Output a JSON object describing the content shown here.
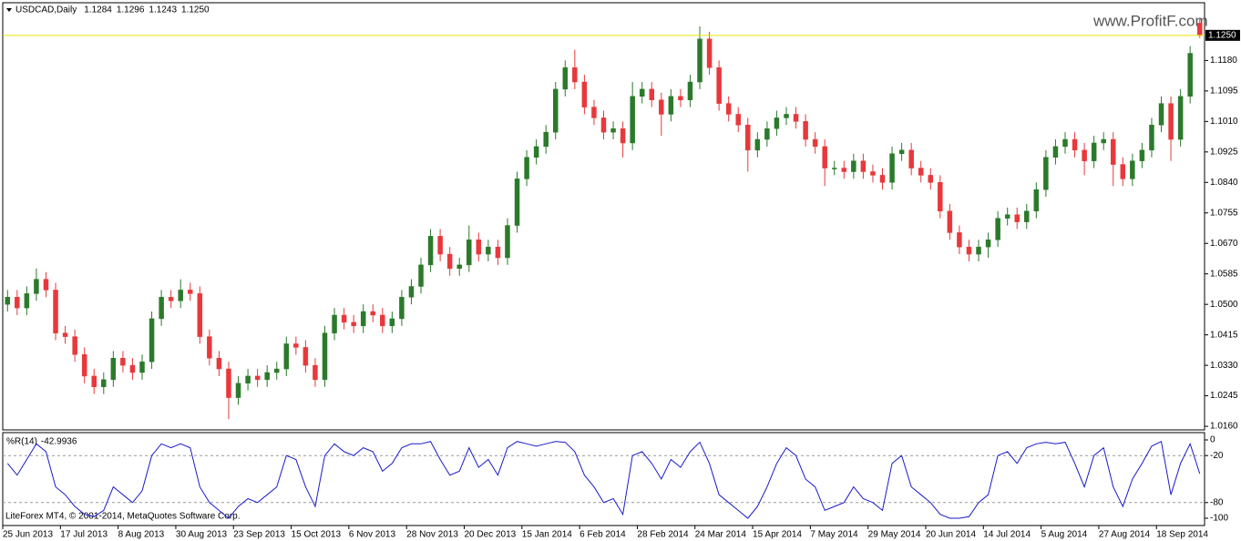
{
  "chart_data": [
    {
      "type": "candlestick",
      "title": "USDCAD,Daily",
      "categories": [
        "25 Jun 2013",
        null,
        null,
        null,
        null,
        null,
        "17 Jul 2013",
        null,
        null,
        null,
        null,
        null,
        "8 Aug 2013",
        null,
        null,
        null,
        null,
        null,
        "30 Aug 2013",
        null,
        null,
        null,
        null,
        null,
        "23 Sep 2013",
        null,
        null,
        null,
        null,
        null,
        "15 Oct 2013",
        null,
        null,
        null,
        null,
        null,
        "6 Nov 2013",
        null,
        null,
        null,
        null,
        null,
        "28 Nov 2013",
        null,
        null,
        null,
        null,
        null,
        "20 Dec 2013",
        null,
        null,
        null,
        null,
        null,
        "15 Jan 2014",
        null,
        null,
        null,
        null,
        null,
        "6 Feb 2014",
        null,
        null,
        null,
        null,
        null,
        "28 Feb 2014",
        null,
        null,
        null,
        null,
        null,
        "24 Mar 2014",
        null,
        null,
        null,
        null,
        null,
        "15 Apr 2014",
        null,
        null,
        null,
        null,
        null,
        "7 May 2014",
        null,
        null,
        null,
        null,
        null,
        "29 May 2014",
        null,
        null,
        null,
        null,
        null,
        "20 Jun 2014",
        null,
        null,
        null,
        null,
        null,
        "14 Jul 2014",
        null,
        null,
        null,
        null,
        null,
        "5 Aug 2014",
        null,
        null,
        null,
        null,
        null,
        "27 Aug 2014",
        null,
        null,
        null,
        null,
        null,
        "18 Sep 2014",
        null,
        null,
        null,
        null
      ],
      "open": [
        1.05,
        1.052,
        1.049,
        1.053,
        1.057,
        1.054,
        1.042,
        1.041,
        1.036,
        1.03,
        1.027,
        1.029,
        1.035,
        1.033,
        1.031,
        1.034,
        1.046,
        1.052,
        1.051,
        1.054,
        1.053,
        1.041,
        1.035,
        1.032,
        1.024,
        1.028,
        1.03,
        1.029,
        1.031,
        1.032,
        1.039,
        1.038,
        1.033,
        1.029,
        1.042,
        1.047,
        1.045,
        1.044,
        1.048,
        1.047,
        1.044,
        1.046,
        1.052,
        1.055,
        1.061,
        1.069,
        1.064,
        1.06,
        1.061,
        1.068,
        1.064,
        1.066,
        1.063,
        1.072,
        1.085,
        1.091,
        1.094,
        1.098,
        1.11,
        1.116,
        1.112,
        1.105,
        1.102,
        1.098,
        1.099,
        1.095,
        1.108,
        1.11,
        1.107,
        1.103,
        1.108,
        1.107,
        1.112,
        1.124,
        1.116,
        1.106,
        1.103,
        1.1,
        1.093,
        1.096,
        1.099,
        1.102,
        1.103,
        1.101,
        1.096,
        1.094,
        1.088,
        1.088,
        1.087,
        1.09,
        1.087,
        1.086,
        1.084,
        1.092,
        1.093,
        1.088,
        1.086,
        1.084,
        1.076,
        1.07,
        1.066,
        1.064,
        1.066,
        1.068,
        1.074,
        1.075,
        1.073,
        1.076,
        1.082,
        1.091,
        1.094,
        1.096,
        1.093,
        1.09,
        1.095,
        1.096,
        1.089,
        1.085,
        1.09,
        1.093,
        1.1,
        1.106,
        1.096,
        1.108,
        1.1284
      ],
      "high": [
        1.054,
        1.054,
        1.055,
        1.06,
        1.059,
        1.056,
        1.044,
        1.043,
        1.038,
        1.032,
        1.031,
        1.037,
        1.037,
        1.035,
        1.036,
        1.048,
        1.054,
        1.054,
        1.057,
        1.056,
        1.055,
        1.043,
        1.037,
        1.034,
        1.03,
        1.032,
        1.032,
        1.033,
        1.034,
        1.041,
        1.041,
        1.04,
        1.035,
        1.044,
        1.049,
        1.049,
        1.047,
        1.05,
        1.05,
        1.049,
        1.048,
        1.054,
        1.057,
        1.063,
        1.071,
        1.071,
        1.066,
        1.063,
        1.072,
        1.07,
        1.068,
        1.068,
        1.074,
        1.087,
        1.093,
        1.096,
        1.1,
        1.112,
        1.118,
        1.121,
        1.114,
        1.107,
        1.104,
        1.101,
        1.101,
        1.112,
        1.112,
        1.112,
        1.109,
        1.11,
        1.11,
        1.114,
        1.1275,
        1.126,
        1.118,
        1.108,
        1.105,
        1.102,
        1.098,
        1.101,
        1.104,
        1.105,
        1.105,
        1.103,
        1.098,
        1.096,
        1.09,
        1.09,
        1.092,
        1.092,
        1.089,
        1.088,
        1.094,
        1.095,
        1.095,
        1.09,
        1.088,
        1.086,
        1.078,
        1.072,
        1.068,
        1.068,
        1.07,
        1.076,
        1.077,
        1.077,
        1.078,
        1.084,
        1.093,
        1.096,
        1.098,
        1.098,
        1.095,
        1.097,
        1.098,
        1.098,
        1.091,
        1.092,
        1.095,
        1.102,
        1.108,
        1.108,
        1.11,
        1.122,
        1.1296
      ],
      "low": [
        1.048,
        1.047,
        1.047,
        1.051,
        1.052,
        1.04,
        1.039,
        1.034,
        1.028,
        1.025,
        1.025,
        1.027,
        1.031,
        1.029,
        1.029,
        1.032,
        1.044,
        1.049,
        1.049,
        1.051,
        1.039,
        1.033,
        1.03,
        1.018,
        1.022,
        1.026,
        1.027,
        1.027,
        1.029,
        1.03,
        1.036,
        1.031,
        1.027,
        1.027,
        1.04,
        1.043,
        1.042,
        1.042,
        1.045,
        1.042,
        1.042,
        1.044,
        1.05,
        1.053,
        1.059,
        1.062,
        1.058,
        1.058,
        1.059,
        1.062,
        1.062,
        1.061,
        1.061,
        1.07,
        1.083,
        1.089,
        1.092,
        1.096,
        1.108,
        1.11,
        1.103,
        1.1,
        1.096,
        1.096,
        1.091,
        1.093,
        1.106,
        1.105,
        1.097,
        1.101,
        1.105,
        1.105,
        1.11,
        1.114,
        1.104,
        1.101,
        1.098,
        1.087,
        1.091,
        1.094,
        1.097,
        1.1,
        1.099,
        1.094,
        1.092,
        1.083,
        1.086,
        1.085,
        1.085,
        1.085,
        1.084,
        1.082,
        1.082,
        1.09,
        1.086,
        1.084,
        1.082,
        1.074,
        1.068,
        1.064,
        1.062,
        1.062,
        1.063,
        1.066,
        1.072,
        1.071,
        1.071,
        1.074,
        1.08,
        1.089,
        1.092,
        1.091,
        1.086,
        1.088,
        1.093,
        1.083,
        1.083,
        1.083,
        1.088,
        1.091,
        1.098,
        1.09,
        1.094,
        1.106,
        1.1243
      ],
      "close": [
        1.052,
        1.049,
        1.053,
        1.057,
        1.054,
        1.042,
        1.041,
        1.036,
        1.03,
        1.027,
        1.029,
        1.035,
        1.033,
        1.031,
        1.034,
        1.046,
        1.052,
        1.051,
        1.054,
        1.053,
        1.041,
        1.035,
        1.032,
        1.024,
        1.028,
        1.03,
        1.029,
        1.031,
        1.032,
        1.039,
        1.038,
        1.033,
        1.029,
        1.042,
        1.047,
        1.045,
        1.044,
        1.048,
        1.047,
        1.044,
        1.046,
        1.052,
        1.055,
        1.061,
        1.069,
        1.064,
        1.06,
        1.061,
        1.068,
        1.064,
        1.066,
        1.063,
        1.072,
        1.085,
        1.091,
        1.094,
        1.098,
        1.11,
        1.116,
        1.112,
        1.105,
        1.102,
        1.098,
        1.099,
        1.095,
        1.108,
        1.11,
        1.107,
        1.103,
        1.108,
        1.107,
        1.112,
        1.124,
        1.116,
        1.106,
        1.103,
        1.1,
        1.093,
        1.096,
        1.099,
        1.102,
        1.103,
        1.101,
        1.096,
        1.094,
        1.088,
        1.088,
        1.087,
        1.09,
        1.087,
        1.086,
        1.084,
        1.092,
        1.093,
        1.088,
        1.086,
        1.084,
        1.076,
        1.07,
        1.066,
        1.064,
        1.066,
        1.068,
        1.074,
        1.075,
        1.073,
        1.076,
        1.082,
        1.091,
        1.094,
        1.096,
        1.093,
        1.09,
        1.095,
        1.096,
        1.089,
        1.085,
        1.09,
        1.093,
        1.1,
        1.106,
        1.096,
        1.108,
        1.12,
        1.125
      ],
      "up_color": "#2b7a2b",
      "down_color": "#e8383b",
      "ylim": [
        1.015,
        1.1341
      ],
      "yticks": [
        {
          "value": 1.118,
          "label": "1.1180"
        },
        1.1095,
        {
          "value": 1.101,
          "label": "1.1010"
        },
        1.0925,
        {
          "value": 1.084,
          "label": "1.0840"
        },
        1.0755,
        {
          "value": 1.067,
          "label": "1.0670"
        },
        1.0585,
        {
          "value": 1.05,
          "label": "1.0500"
        },
        1.0415,
        {
          "value": 1.033,
          "label": "1.0330"
        },
        1.0245,
        {
          "value": 1.016,
          "label": "1.0160"
        }
      ],
      "last_price": {
        "value": 1.125,
        "label": "1.1250"
      },
      "last_price_color": "#e6e600"
    },
    {
      "type": "line",
      "title": "%R(14)",
      "series": [
        {
          "name": "%R(14)",
          "color": "#1a1acc",
          "values": [
            -30,
            -45,
            -25,
            -5,
            -15,
            -60,
            -70,
            -85,
            -95,
            -98,
            -90,
            -60,
            -70,
            -80,
            -65,
            -20,
            -5,
            -10,
            -5,
            -10,
            -60,
            -80,
            -90,
            -100,
            -85,
            -75,
            -80,
            -70,
            -60,
            -20,
            -25,
            -60,
            -85,
            -20,
            -5,
            -15,
            -20,
            -10,
            -15,
            -40,
            -30,
            -10,
            -5,
            -5,
            -2,
            -25,
            -45,
            -40,
            -10,
            -35,
            -25,
            -45,
            -10,
            -2,
            -5,
            -8,
            -5,
            -2,
            -3,
            -15,
            -45,
            -60,
            -80,
            -75,
            -95,
            -20,
            -15,
            -30,
            -50,
            -25,
            -35,
            -15,
            -3,
            -30,
            -70,
            -80,
            -90,
            -100,
            -85,
            -60,
            -30,
            -10,
            -20,
            -50,
            -60,
            -90,
            -85,
            -80,
            -60,
            -75,
            -80,
            -90,
            -30,
            -20,
            -60,
            -70,
            -80,
            -95,
            -100,
            -100,
            -98,
            -80,
            -70,
            -20,
            -15,
            -30,
            -10,
            -5,
            -3,
            -5,
            -3,
            -30,
            -60,
            -20,
            -10,
            -60,
            -85,
            -50,
            -30,
            -8,
            -2,
            -70,
            -30,
            -5,
            -42.9936
          ]
        }
      ],
      "ylim": [
        -109.3,
        9.3
      ],
      "yticks": [
        0,
        -20,
        -80,
        -100
      ],
      "levels": [
        -20,
        -80
      ]
    }
  ],
  "watermark": "www.ProfitF.com",
  "footer": "LiteForex MT4, © 2001-2014, MetaQuotes Software Corp."
}
